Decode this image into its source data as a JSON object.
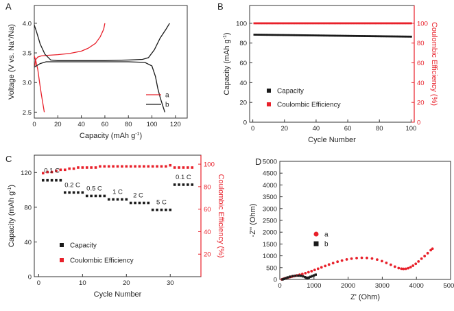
{
  "chart_data": [
    {
      "panel": "A",
      "type": "line",
      "xlabel": "Capacity (mAh g",
      "xlabel_sup": "-1",
      "xlabel_end": ")",
      "ylabel": "Voltage (V vs. Na",
      "ylabel_sup": "+",
      "ylabel_end": "/Na)",
      "xlim": [
        0,
        130
      ],
      "ylim": [
        2.4,
        4.3
      ],
      "xticks": [
        "0",
        "20",
        "40",
        "60",
        "80",
        "100",
        "120"
      ],
      "yticks": [
        "2.5",
        "3.0",
        "3.5",
        "4.0"
      ],
      "legend": "bottom-right",
      "series": [
        {
          "name": "a",
          "color": "#e8202a",
          "segments": [
            [
              [
                0.5,
                3.28
              ],
              [
                1,
                3.38
              ],
              [
                3,
                3.43
              ],
              [
                6,
                3.45
              ],
              [
                12,
                3.46
              ],
              [
                20,
                3.47
              ],
              [
                30,
                3.49
              ],
              [
                40,
                3.53
              ],
              [
                46,
                3.58
              ],
              [
                52,
                3.66
              ],
              [
                56,
                3.77
              ],
              [
                59,
                3.9
              ],
              [
                60,
                4.0
              ]
            ],
            [
              [
                0,
                3.45
              ],
              [
                1.5,
                3.35
              ],
              [
                3,
                3.22
              ],
              [
                4.5,
                3.0
              ],
              [
                6,
                2.8
              ],
              [
                7,
                2.68
              ],
              [
                8.5,
                2.5
              ]
            ]
          ]
        },
        {
          "name": "b",
          "color": "#1a1a1a",
          "segments": [
            [
              [
                0,
                3.97
              ],
              [
                2,
                3.85
              ],
              [
                5,
                3.65
              ],
              [
                9,
                3.48
              ],
              [
                14,
                3.38
              ],
              [
                20,
                3.37
              ],
              [
                40,
                3.37
              ],
              [
                60,
                3.37
              ],
              [
                80,
                3.38
              ],
              [
                92,
                3.39
              ],
              [
                97,
                3.42
              ],
              [
                102,
                3.55
              ],
              [
                107,
                3.75
              ],
              [
                112,
                3.9
              ],
              [
                115,
                4.0
              ]
            ],
            [
              [
                0,
                3.26
              ],
              [
                5,
                3.32
              ],
              [
                10,
                3.35
              ],
              [
                15,
                3.35
              ],
              [
                40,
                3.35
              ],
              [
                60,
                3.35
              ],
              [
                80,
                3.35
              ],
              [
                94,
                3.34
              ],
              [
                100,
                3.28
              ],
              [
                103,
                3.1
              ],
              [
                105,
                2.9
              ],
              [
                107,
                2.75
              ],
              [
                109,
                2.62
              ],
              [
                111,
                2.5
              ]
            ]
          ]
        }
      ]
    },
    {
      "panel": "B",
      "type": "scatter",
      "xlabel": "Cycle Number",
      "ylabel": "Capacity (mAh g",
      "ylabel_sup": "-1",
      "ylabel_end": ")",
      "y2label": "Coulombic Efficiency (%)",
      "xlim": [
        -2,
        102
      ],
      "ylim": [
        0,
        118
      ],
      "y2lim": [
        0,
        118
      ],
      "xticks": [
        "0",
        "20",
        "40",
        "60",
        "80",
        "100"
      ],
      "yticks": [
        "0",
        "20",
        "40",
        "60",
        "80",
        "100"
      ],
      "y2ticks": [
        "0",
        "20",
        "40",
        "60",
        "80",
        "100"
      ],
      "legend": "bottom-left",
      "series": [
        {
          "name": "Capacity",
          "color": "#1a1a1a",
          "axis": "left",
          "start": 88.5,
          "end": 86.5,
          "count": 100
        },
        {
          "name": "Coulombic Efficiency",
          "color": "#e8202a",
          "axis": "right",
          "start": 100,
          "end": 100,
          "count": 100
        }
      ]
    },
    {
      "panel": "C",
      "type": "scatter",
      "xlabel": "Cycle Number",
      "ylabel": "Capacity (mAh g",
      "ylabel_sup": "-1",
      "ylabel_end": ")",
      "y2label": "Coulombic Efficiency (%)",
      "xlim": [
        -1,
        37
      ],
      "ylim": [
        0,
        140
      ],
      "y2lim": [
        0,
        108
      ],
      "xticks": [
        "0",
        "10",
        "20",
        "30"
      ],
      "yticks": [
        "0",
        "40",
        "80",
        "120"
      ],
      "y2ticks": [
        "20",
        "40",
        "60",
        "80",
        "100"
      ],
      "legend": "bottom-left",
      "rate_groups": [
        {
          "label": "0.1 C",
          "cycles": [
            1,
            2,
            3,
            4,
            5
          ],
          "capacity": 111
        },
        {
          "label": "0.2 C",
          "cycles": [
            6,
            7,
            8,
            9,
            10
          ],
          "capacity": 97
        },
        {
          "label": "0.5 C",
          "cycles": [
            11,
            12,
            13,
            14,
            15
          ],
          "capacity": 93
        },
        {
          "label": "1 C",
          "cycles": [
            16,
            17,
            18,
            19,
            20
          ],
          "capacity": 89
        },
        {
          "label": "2 C",
          "cycles": [
            21,
            22,
            23,
            24,
            25
          ],
          "capacity": 85
        },
        {
          "label": "5 C",
          "cycles": [
            26,
            27,
            28,
            29,
            30
          ],
          "capacity": 77
        },
        {
          "label": "0.1 C",
          "cycles": [
            31,
            32,
            33,
            34,
            35
          ],
          "capacity": 106
        }
      ],
      "series": [
        {
          "name": "Capacity",
          "color": "#1a1a1a",
          "axis": "left"
        },
        {
          "name": "Coulombic Efficiency",
          "color": "#e8202a",
          "axis": "right",
          "values": [
            92,
            93,
            93,
            94,
            95,
            95,
            96,
            96,
            97,
            97,
            97,
            97,
            97,
            98,
            98,
            98,
            98,
            98,
            98,
            98,
            98,
            98,
            98,
            98,
            98,
            98,
            98,
            98,
            98,
            99,
            97,
            97,
            97,
            97,
            97
          ]
        }
      ]
    },
    {
      "panel": "D",
      "type": "scatter",
      "xlabel": "Z' (Ohm)",
      "ylabel": "-Z'' (Ohm)",
      "xlim": [
        0,
        5000
      ],
      "ylim": [
        0,
        5000
      ],
      "xticks": [
        "0",
        "1000",
        "2000",
        "3000",
        "4000",
        "5000"
      ],
      "yticks": [
        "0",
        "500",
        "1000",
        "1500",
        "2000",
        "2500",
        "3000",
        "3500",
        "4000",
        "4500",
        "5000"
      ],
      "legend": "center-left",
      "series": [
        {
          "name": "a",
          "color": "#e8202a",
          "marker": "circle",
          "points": [
            [
              60,
              0
            ],
            [
              90,
              15
            ],
            [
              130,
              35
            ],
            [
              180,
              55
            ],
            [
              230,
              75
            ],
            [
              290,
              95
            ],
            [
              350,
              115
            ],
            [
              420,
              140
            ],
            [
              500,
              170
            ],
            [
              580,
              200
            ],
            [
              660,
              230
            ],
            [
              750,
              265
            ],
            [
              840,
              305
            ],
            [
              930,
              350
            ],
            [
              1020,
              400
            ],
            [
              1120,
              455
            ],
            [
              1220,
              510
            ],
            [
              1330,
              570
            ],
            [
              1440,
              630
            ],
            [
              1560,
              690
            ],
            [
              1690,
              750
            ],
            [
              1820,
              800
            ],
            [
              1960,
              845
            ],
            [
              2100,
              880
            ],
            [
              2250,
              905
            ],
            [
              2400,
              915
            ],
            [
              2550,
              910
            ],
            [
              2700,
              885
            ],
            [
              2850,
              840
            ],
            [
              2990,
              775
            ],
            [
              3120,
              700
            ],
            [
              3250,
              620
            ],
            [
              3370,
              540
            ],
            [
              3480,
              480
            ],
            [
              3560,
              455
            ],
            [
              3620,
              445
            ],
            [
              3690,
              450
            ],
            [
              3760,
              475
            ],
            [
              3830,
              520
            ],
            [
              3900,
              580
            ],
            [
              3980,
              660
            ],
            [
              4060,
              760
            ],
            [
              4150,
              880
            ],
            [
              4240,
              990
            ],
            [
              4330,
              1110
            ],
            [
              4420,
              1240
            ],
            [
              4470,
              1300
            ]
          ]
        },
        {
          "name": "b",
          "color": "#1a1a1a",
          "marker": "square",
          "points": [
            [
              80,
              0
            ],
            [
              120,
              20
            ],
            [
              170,
              50
            ],
            [
              230,
              85
            ],
            [
              300,
              115
            ],
            [
              380,
              140
            ],
            [
              460,
              155
            ],
            [
              540,
              160
            ],
            [
              610,
              155
            ],
            [
              680,
              130
            ],
            [
              740,
              95
            ],
            [
              780,
              70
            ],
            [
              810,
              60
            ],
            [
              850,
              80
            ],
            [
              900,
              110
            ],
            [
              950,
              140
            ],
            [
              1000,
              170
            ],
            [
              1050,
              200
            ]
          ]
        }
      ]
    }
  ],
  "panel_labels": [
    "A",
    "B",
    "C",
    "D"
  ]
}
